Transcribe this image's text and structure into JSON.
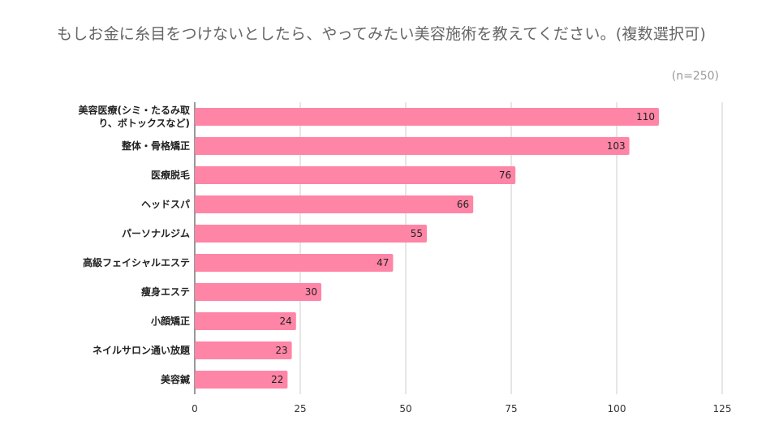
{
  "chart_data": {
    "type": "bar",
    "orientation": "horizontal",
    "title": "もしお金に糸目をつけないとしたら、やってみたい美容施術を教えてください。(複数選択可)",
    "note": "(n=250)",
    "categories": [
      "美容医療(シミ・たるみ取り、ボトックスなど)",
      "整体・骨格矯正",
      "医療脱毛",
      "ヘッドスパ",
      "パーソナルジム",
      "高級フェイシャルエステ",
      "痩身エステ",
      "小顔矯正",
      "ネイルサロン通い放題",
      "美容鍼"
    ],
    "category_lines": [
      [
        "美容医療(シミ・たるみ取",
        "り、ボトックスなど)"
      ],
      [
        "整体・骨格矯正"
      ],
      [
        "医療脱毛"
      ],
      [
        "ヘッドスパ"
      ],
      [
        "パーソナルジム"
      ],
      [
        "高級フェイシャルエステ"
      ],
      [
        "痩身エステ"
      ],
      [
        "小顔矯正"
      ],
      [
        "ネイルサロン通い放題"
      ],
      [
        "美容鍼"
      ]
    ],
    "values": [
      110,
      103,
      76,
      66,
      55,
      47,
      30,
      24,
      23,
      22
    ],
    "xlim": [
      0,
      125
    ],
    "xticks": [
      0,
      25,
      50,
      75,
      100,
      125
    ],
    "xlabel": "",
    "ylabel": "",
    "grid": true,
    "bar_color": "#ff85a6"
  }
}
